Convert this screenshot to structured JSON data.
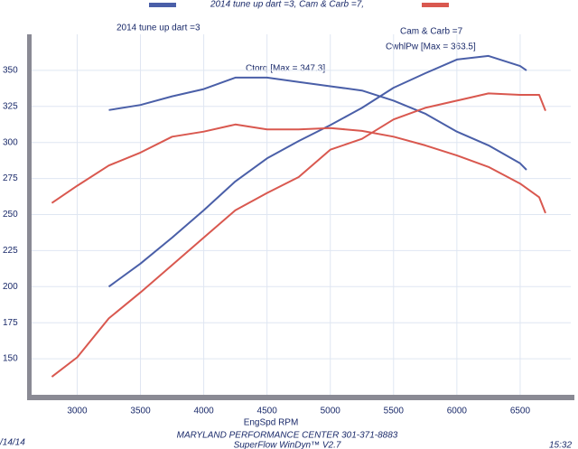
{
  "chart_data": {
    "type": "line",
    "title": "2014 tune up dart =3, Cam & Carb =7,",
    "x_label": "EngSpd  RPM",
    "footer": [
      "MARYLAND PERFORMANCE CENTER 301-371-8883",
      "SuperFlow WinDyn™ V2.7"
    ],
    "date": "/14/14",
    "time": "15:32",
    "annotations": [
      "Ctorq  [Max = 347.3]",
      "CwhlPw [Max = 363.5]"
    ],
    "xlim": [
      2640,
      6900
    ],
    "xticks": [
      3000,
      3500,
      4000,
      4500,
      5000,
      5500,
      6000,
      6500
    ],
    "ylim": [
      125,
      375
    ],
    "yticks": [
      150,
      175,
      200,
      225,
      250,
      275,
      300,
      325,
      350
    ],
    "grid": true,
    "series": [
      {
        "name": "2014 tune up dart =3",
        "color": "#4a5fa8",
        "x": [
          3250,
          3500,
          3750,
          4000,
          4250,
          4500,
          4750,
          5000,
          5250,
          5500,
          5750,
          6000,
          6250,
          6500,
          6550
        ],
        "torque": [
          322.5,
          326,
          332,
          337,
          345,
          345,
          342,
          339,
          336,
          329,
          320,
          307.5,
          298,
          285.5,
          281
        ],
        "power": [
          200,
          216,
          234,
          253,
          273,
          289,
          301,
          312,
          324,
          338,
          348,
          357.5,
          360,
          353,
          350
        ]
      },
      {
        "name": "Cam & Carb =7",
        "color": "#d9584f",
        "x": [
          2800,
          3000,
          3250,
          3500,
          3750,
          4000,
          4250,
          4500,
          4750,
          5000,
          5250,
          5500,
          5750,
          6000,
          6250,
          6500,
          6650,
          6700
        ],
        "torque": [
          258,
          270,
          284,
          293,
          304,
          307.5,
          312.5,
          309,
          309,
          310,
          308,
          304,
          298,
          291,
          283,
          271.5,
          262,
          251
        ],
        "power": [
          137.5,
          151,
          178,
          196,
          215,
          234,
          253,
          265,
          276,
          295,
          302.5,
          316,
          324,
          329,
          334,
          333,
          333,
          322
        ]
      }
    ]
  }
}
